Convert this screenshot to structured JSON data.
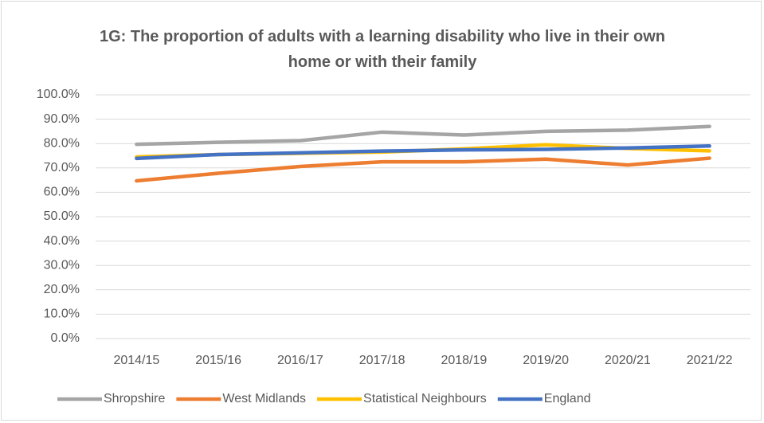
{
  "chart_data": {
    "type": "line",
    "title": "1G: The proportion of adults with a learning disability who live in their own home or with their family",
    "categories": [
      "2014/15",
      "2015/16",
      "2016/17",
      "2017/18",
      "2018/19",
      "2019/20",
      "2020/21",
      "2021/22"
    ],
    "series": [
      {
        "name": "Shropshire",
        "color": "#a5a5a5",
        "values": [
          79.7,
          80.5,
          81.2,
          84.7,
          83.5,
          85.0,
          85.5,
          87.0
        ]
      },
      {
        "name": "West Midlands",
        "color": "#ed7d31",
        "values": [
          64.7,
          67.8,
          70.6,
          72.5,
          72.5,
          73.6,
          71.2,
          74.0
        ]
      },
      {
        "name": "Statistical Neighbours",
        "color": "#ffc000",
        "values": [
          74.5,
          75.5,
          76.0,
          76.5,
          77.8,
          79.5,
          78.0,
          77.0
        ]
      },
      {
        "name": "England",
        "color": "#4472c4",
        "values": [
          73.9,
          75.5,
          76.2,
          76.9,
          77.4,
          77.6,
          78.2,
          79.0
        ]
      }
    ],
    "ylim": [
      0,
      100
    ],
    "yticks": [
      {
        "value": 0,
        "label": "0.0%"
      },
      {
        "value": 10,
        "label": "10.0%"
      },
      {
        "value": 20,
        "label": "20.0%"
      },
      {
        "value": 30,
        "label": "30.0%"
      },
      {
        "value": 40,
        "label": "40.0%"
      },
      {
        "value": 50,
        "label": "50.0%"
      },
      {
        "value": 60,
        "label": "60.0%"
      },
      {
        "value": 70,
        "label": "70.0%"
      },
      {
        "value": 80,
        "label": "80.0%"
      },
      {
        "value": 90,
        "label": "90.0%"
      },
      {
        "value": 100,
        "label": "100.0%"
      }
    ],
    "grid": true,
    "legend": "bottom"
  }
}
